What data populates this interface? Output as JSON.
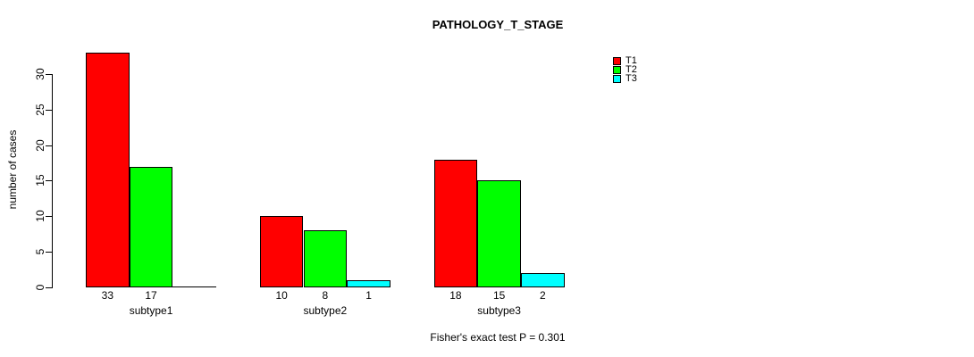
{
  "title": "PATHOLOGY_T_STAGE",
  "ylabel": "number of cases",
  "footnote": "Fisher's exact test P = 0.301",
  "legend": {
    "items": [
      {
        "label": "T1",
        "color": "#FF0000"
      },
      {
        "label": "T2",
        "color": "#00FF00"
      },
      {
        "label": "T3",
        "color": "#00FFFF"
      }
    ]
  },
  "chart_data": {
    "type": "bar",
    "title": "PATHOLOGY_T_STAGE",
    "xlabel": "",
    "ylabel": "number of cases",
    "categories": [
      "subtype1",
      "subtype2",
      "subtype3"
    ],
    "series": [
      {
        "name": "T1",
        "color": "#FF0000",
        "values": [
          33,
          10,
          18
        ]
      },
      {
        "name": "T2",
        "color": "#00FF00",
        "values": [
          17,
          8,
          15
        ]
      },
      {
        "name": "T3",
        "color": "#00FFFF",
        "values": [
          0,
          1,
          2
        ]
      }
    ],
    "ylim": [
      0,
      33
    ],
    "yticks": [
      0,
      5,
      10,
      15,
      20,
      25,
      30
    ],
    "grid": false,
    "legend_position": "right",
    "annotation": "Fisher's exact test P = 0.301",
    "bar_value_labels": true
  }
}
